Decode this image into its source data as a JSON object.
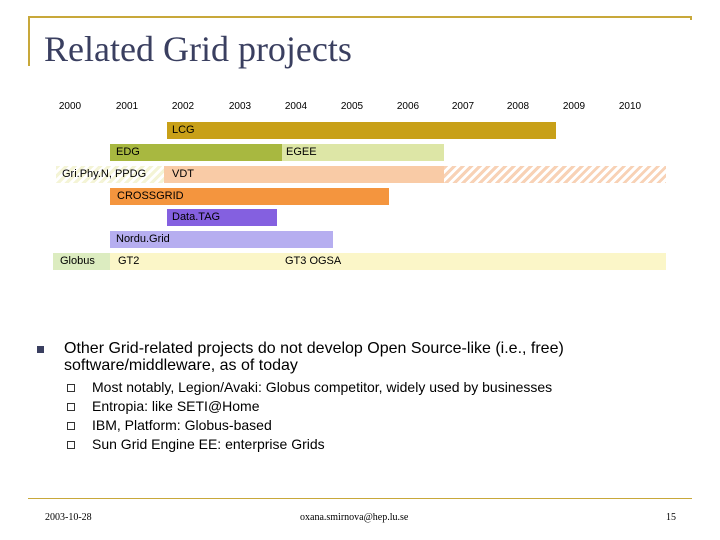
{
  "title": "Related Grid projects",
  "years": [
    "2000",
    "2001",
    "2002",
    "2003",
    "2004",
    "2005",
    "2006",
    "2007",
    "2008",
    "2009",
    "2010"
  ],
  "projects": {
    "lcg": "LCG",
    "edg": "EDG",
    "egee": "EGEE",
    "griphyn": "Gri.Phy.N, PPDG",
    "vdt": "VDT",
    "crossgrid": "CROSSGRID",
    "datatag": "Data.TAG",
    "nordugrid": "Nordu.Grid",
    "globus": "Globus",
    "gt2": "GT2",
    "gt3": "GT3 OGSA"
  },
  "main_bullet": "Other Grid-related projects do not develop Open Source-like (i.e., free) software/middleware, as of today",
  "sub_bullets": [
    "Most notably, Legion/Avaki: Globus competitor, widely used by businesses",
    "Entropia: like SETI@Home",
    "IBM, Platform: Globus-based",
    "Sun Grid Engine EE: enterprise Grids"
  ],
  "footer": {
    "date": "2003-10-28",
    "email": "oxana.smirnova@hep.lu.se",
    "page": "15"
  },
  "colors": {
    "title": "#3a3f60",
    "rule": "#c8a83a",
    "lcg": "#c8a018",
    "edg": "#a8b840",
    "egee": "#dde6a6",
    "vdt": "#f9cba6",
    "crossgrid": "#f4953e",
    "datatag": "#8460e0",
    "nordugrid": "#b6aef0",
    "globus": "#dcecc0",
    "gt_span": "#fbf6c8"
  }
}
